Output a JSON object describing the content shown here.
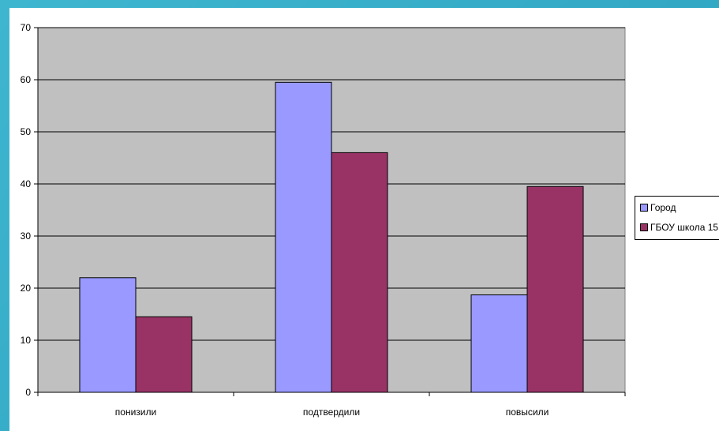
{
  "chart_data": {
    "type": "bar",
    "categories": [
      "понизили",
      "подтвердили",
      "повысили"
    ],
    "series": [
      {
        "name": "Город",
        "values": [
          22,
          59.5,
          18.7
        ],
        "color": "#9999ff"
      },
      {
        "name": "ГБОУ школа 15",
        "values": [
          14.5,
          46,
          39.5
        ],
        "color": "#993366"
      }
    ],
    "ylim": [
      0,
      70
    ],
    "yticks": [
      0,
      10,
      20,
      30,
      40,
      50,
      60,
      70
    ],
    "grid": true,
    "plot_background": "#c0c0c0",
    "legend_position": "right"
  }
}
